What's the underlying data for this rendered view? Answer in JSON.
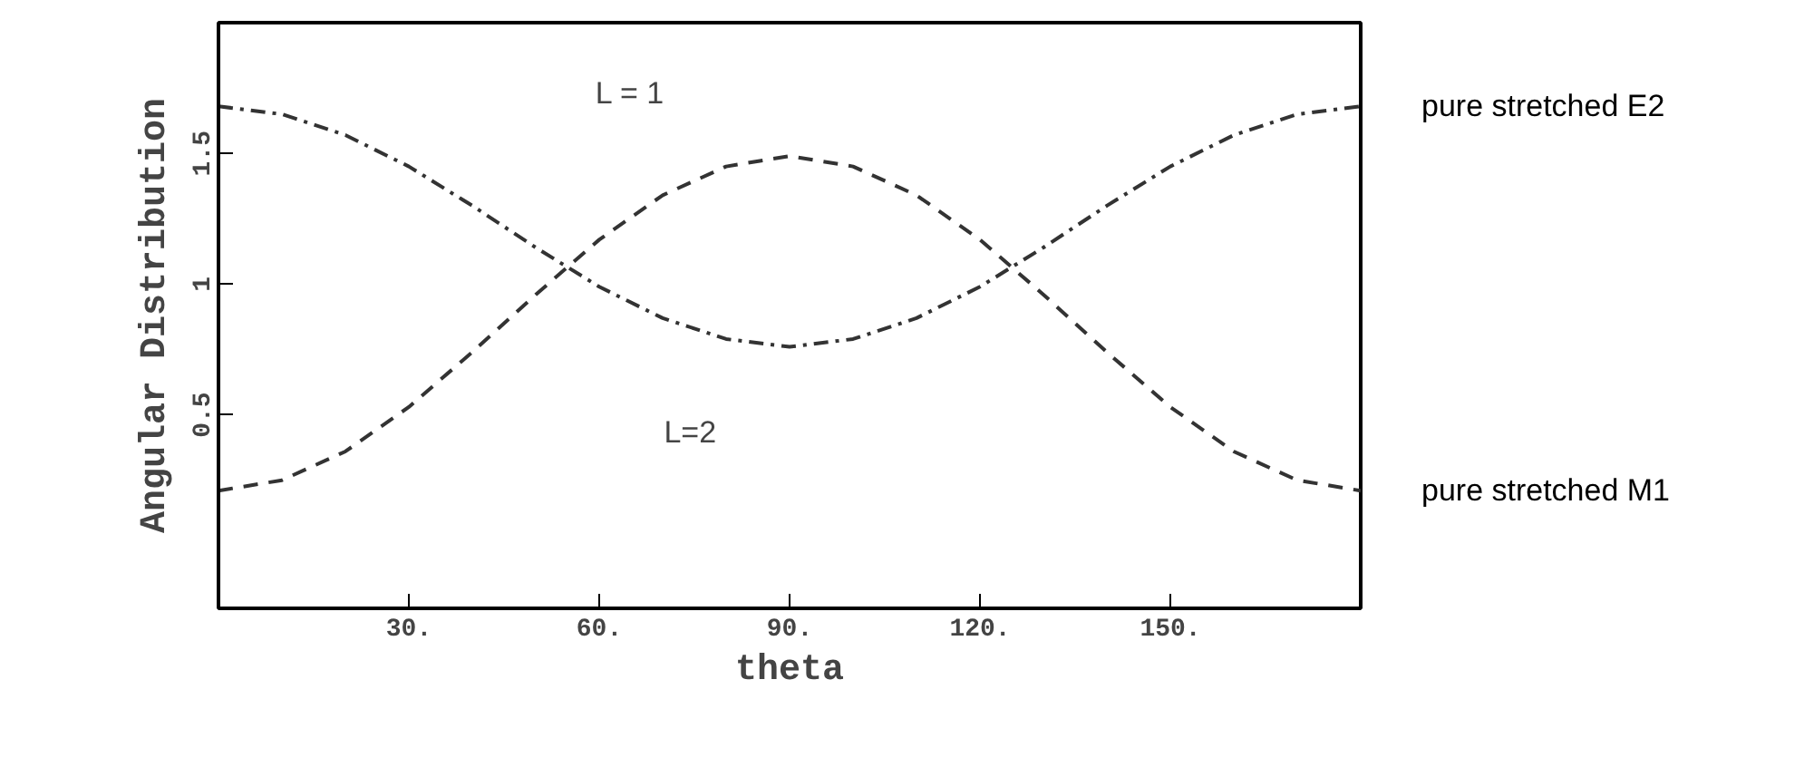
{
  "chart_data": {
    "type": "line",
    "xlabel": "theta",
    "ylabel": "Angular Distribution",
    "x": [
      0,
      10,
      20,
      30,
      40,
      50,
      60,
      70,
      80,
      90,
      100,
      110,
      120,
      130,
      140,
      150,
      160,
      170,
      180
    ],
    "series": [
      {
        "name": "pure stretched E2",
        "color": "#333333",
        "line_style": "dashdot",
        "values": [
          1.68,
          1.65,
          1.57,
          1.45,
          1.3,
          1.14,
          0.99,
          0.87,
          0.79,
          0.76,
          0.79,
          0.87,
          0.99,
          1.14,
          1.3,
          1.45,
          1.57,
          1.65,
          1.68
        ]
      },
      {
        "name": "pure stretched M1",
        "color": "#333333",
        "line_style": "dashed",
        "values": [
          0.21,
          0.25,
          0.36,
          0.53,
          0.74,
          0.96,
          1.17,
          1.34,
          1.45,
          1.49,
          1.45,
          1.34,
          1.17,
          0.96,
          0.74,
          0.53,
          0.36,
          0.25,
          0.21
        ]
      }
    ],
    "xlim": [
      0,
      180
    ],
    "ylim": [
      -0.24,
      2.0
    ],
    "xticks": [
      {
        "value": 30,
        "label": "30."
      },
      {
        "value": 60,
        "label": "60."
      },
      {
        "value": 90,
        "label": "90."
      },
      {
        "value": 120,
        "label": "120."
      },
      {
        "value": 150,
        "label": "150."
      }
    ],
    "yticks": [
      0.5,
      1.0,
      1.5
    ],
    "grid": false,
    "legend": false,
    "marker": "none",
    "annotations": [
      "L = 1",
      "L=2"
    ]
  }
}
